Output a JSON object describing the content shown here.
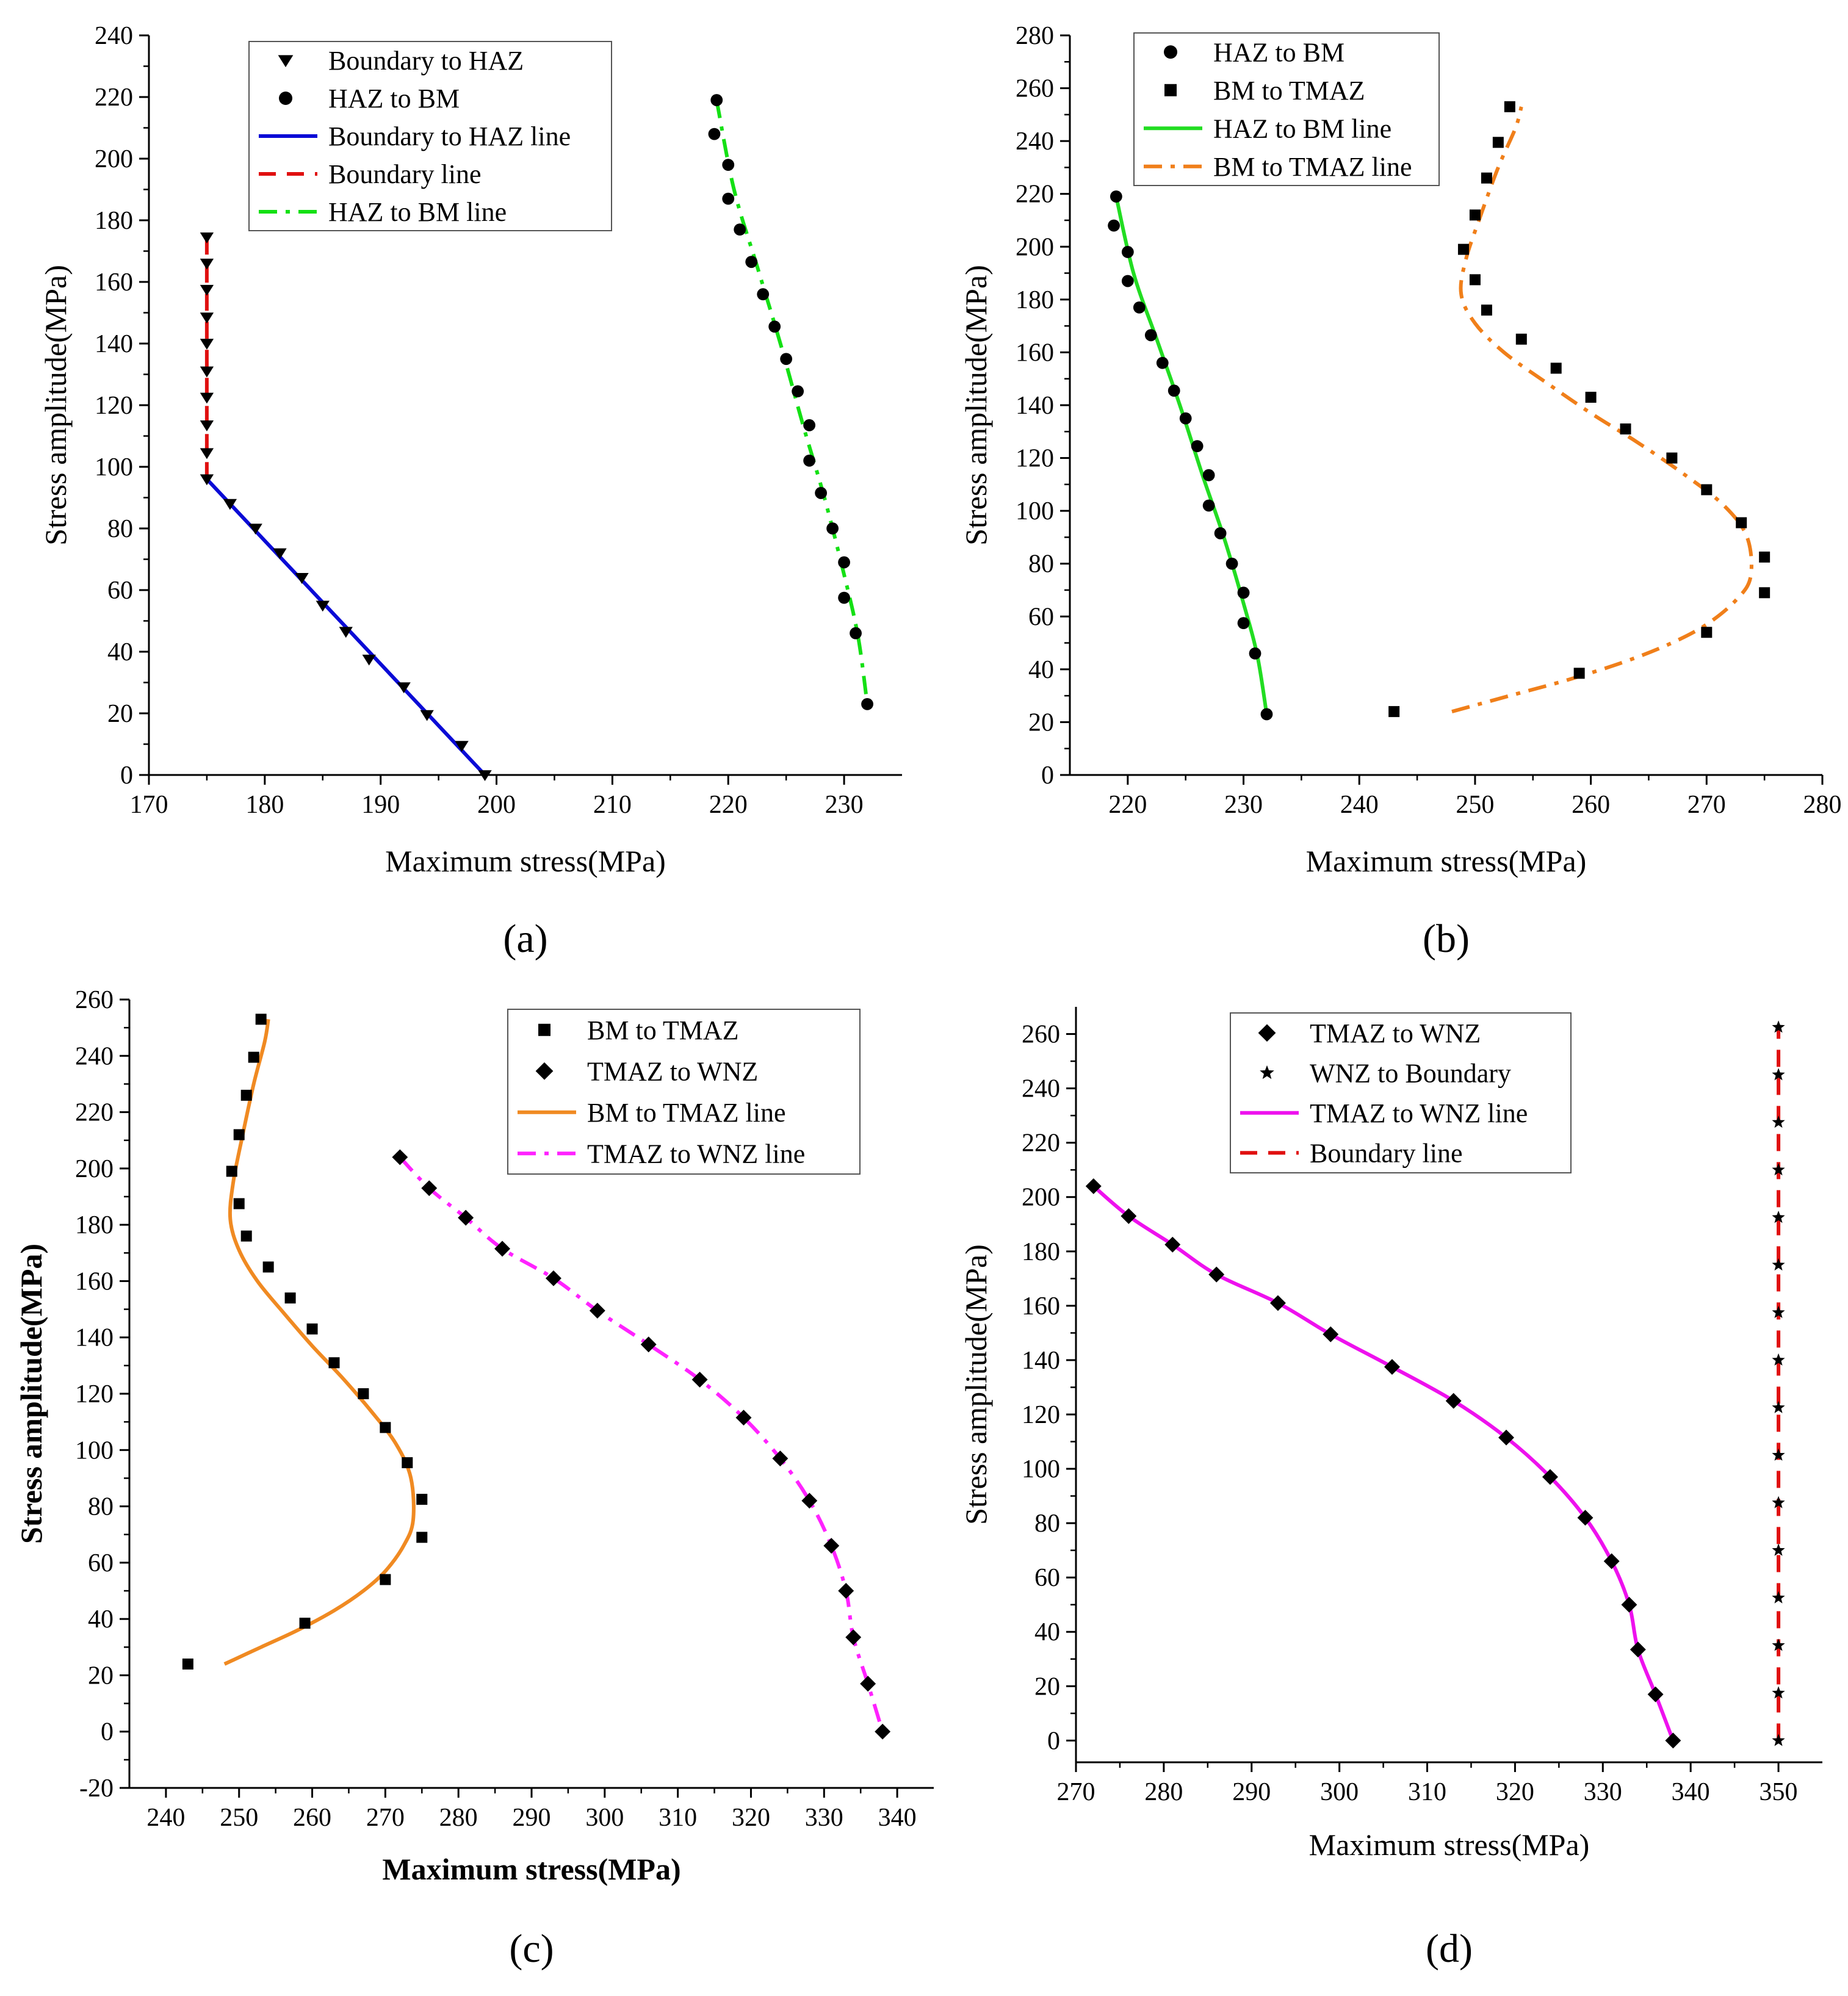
{
  "chart_data": [
    {
      "panel_label": "(a)",
      "type": "scatter",
      "xlabel": "Maximum stress(MPa)",
      "ylabel": "Stress amplitude(MPa)",
      "xlim": [
        170,
        235
      ],
      "ylim": [
        0,
        240
      ],
      "xticks": [
        170,
        180,
        190,
        200,
        210,
        220,
        230
      ],
      "yticks": [
        0,
        20,
        40,
        60,
        80,
        100,
        120,
        140,
        160,
        180,
        200,
        220,
        240
      ],
      "legend_position": "top-right",
      "series": [
        {
          "name": "Boundary to HAZ",
          "kind": "marker",
          "marker": "triangle-down",
          "color": "#000000",
          "x": [
            175,
            177,
            179.2,
            181.3,
            183.2,
            185,
            187,
            189,
            192,
            194,
            197,
            199
          ],
          "y": [
            96,
            88,
            80,
            72,
            64,
            55,
            46.5,
            37.5,
            28.5,
            19.5,
            9.5,
            0
          ]
        },
        {
          "name": "Boundary to HAZ",
          "kind": "marker",
          "marker": "triangle-down",
          "color": "#000000",
          "x": [
            175,
            175,
            175,
            175,
            175,
            175,
            175,
            175,
            175
          ],
          "y": [
            104.5,
            113.5,
            122.5,
            131,
            140,
            148.5,
            157.5,
            166,
            174.5
          ]
        },
        {
          "name": "HAZ to BM",
          "kind": "marker",
          "marker": "circle",
          "color": "#000000",
          "x": [
            219,
            218.8,
            220,
            220,
            221,
            222,
            223,
            224,
            225,
            226,
            227,
            227,
            228,
            229,
            230,
            230,
            231,
            232
          ],
          "y": [
            219,
            208,
            198,
            187,
            177,
            166.5,
            156,
            145.5,
            135,
            124.5,
            113.5,
            102,
            91.5,
            80,
            69,
            57.5,
            46,
            23
          ]
        },
        {
          "name": "Boundary to HAZ line",
          "kind": "line",
          "style": "solid",
          "color": "#0a0ad6",
          "x": [
            175,
            199
          ],
          "y": [
            96,
            0
          ]
        },
        {
          "name": "Boundary line",
          "kind": "line",
          "style": "dash",
          "color": "#e01010",
          "x": [
            175,
            175
          ],
          "y": [
            96,
            175
          ]
        },
        {
          "name": "HAZ to BM line",
          "kind": "line",
          "style": "dashdot",
          "color": "#14e014",
          "x": [
            219,
            220.5,
            222.5,
            224.5,
            226.5,
            228.3,
            230,
            231.2,
            232
          ],
          "y": [
            219,
            190,
            165,
            140,
            113,
            90,
            65,
            45,
            23
          ]
        }
      ]
    },
    {
      "panel_label": "(b)",
      "type": "scatter",
      "xlabel": "Maximum stress(MPa)",
      "ylabel": "Stress amplitude(MPa)",
      "xlim": [
        215,
        280
      ],
      "ylim": [
        0,
        280
      ],
      "xticks": [
        220,
        230,
        240,
        250,
        260,
        270,
        280
      ],
      "yticks": [
        0,
        20,
        40,
        60,
        80,
        100,
        120,
        140,
        160,
        180,
        200,
        220,
        240,
        260,
        280
      ],
      "legend_position": "top-left",
      "series": [
        {
          "name": "HAZ to BM",
          "kind": "marker",
          "marker": "circle",
          "color": "#000000",
          "x": [
            219,
            218.8,
            220,
            220,
            221,
            222,
            223,
            224,
            225,
            226,
            227,
            227,
            228,
            229,
            230,
            230,
            231,
            232
          ],
          "y": [
            219,
            208,
            198,
            187,
            177,
            166.5,
            156,
            145.5,
            135,
            124.5,
            113.5,
            102,
            91.5,
            80,
            69,
            57.5,
            46,
            23
          ]
        },
        {
          "name": "BM to TMAZ",
          "kind": "marker",
          "marker": "square",
          "color": "#000000",
          "x": [
            243,
            259,
            270,
            275,
            275,
            273,
            270,
            267,
            263,
            260,
            257,
            254,
            251,
            250,
            249,
            250,
            251,
            252,
            253
          ],
          "y": [
            24,
            38.5,
            54,
            69,
            82.5,
            95.5,
            108,
            120,
            131,
            143,
            154,
            165,
            176,
            187.5,
            199,
            212,
            226,
            239.5,
            253
          ]
        },
        {
          "name": "HAZ to BM line",
          "kind": "line",
          "style": "solid",
          "color": "#22dd22",
          "x": [
            219,
            220.5,
            222.5,
            224.5,
            226.5,
            228.3,
            230,
            231.2,
            232
          ],
          "y": [
            219,
            190,
            165,
            140,
            113,
            90,
            65,
            45,
            23
          ]
        },
        {
          "name": "BM to TMAZ line",
          "kind": "line",
          "style": "dashdot",
          "color": "#f07f1a",
          "x": [
            248,
            253,
            258,
            263,
            267,
            270,
            272.5,
            273.8,
            273.5,
            271.5,
            268,
            264,
            260,
            256,
            252.5,
            250,
            248.8,
            249.2,
            250.5,
            252,
            253.5,
            254
          ],
          "y": [
            24,
            30,
            36,
            43,
            50,
            57,
            66,
            75,
            90,
            102,
            114,
            126,
            137,
            149,
            160,
            171,
            182,
            195,
            212,
            230,
            245,
            253
          ]
        }
      ]
    },
    {
      "panel_label": "(c)",
      "type": "scatter",
      "xlabel": "Maximum stress(MPa)",
      "ylabel": "Stress amplitude(MPa)",
      "xlim": [
        235,
        345
      ],
      "ylim": [
        -20,
        260
      ],
      "xticks": [
        240,
        250,
        260,
        270,
        280,
        290,
        300,
        310,
        320,
        330,
        340
      ],
      "yticks": [
        -20,
        0,
        20,
        40,
        60,
        80,
        100,
        120,
        140,
        160,
        180,
        200,
        220,
        240,
        260
      ],
      "legend_position": "top-right",
      "series": [
        {
          "name": "BM to TMAZ",
          "kind": "marker",
          "marker": "square",
          "color": "#000000",
          "x": [
            243,
            259,
            270,
            275,
            275,
            273,
            270,
            267,
            263,
            260,
            257,
            254,
            251,
            250,
            249,
            250,
            251,
            252,
            253
          ],
          "y": [
            24,
            38.5,
            54,
            69,
            82.5,
            95.5,
            108,
            120,
            131,
            143,
            154,
            165,
            176,
            187.5,
            199,
            212,
            226,
            239.5,
            253
          ]
        },
        {
          "name": "TMAZ to WNZ",
          "kind": "marker",
          "marker": "diamond",
          "color": "#000000",
          "x": [
            272,
            276,
            281,
            286,
            293,
            299,
            306,
            313,
            319,
            324,
            328,
            331,
            333,
            334,
            336,
            338
          ],
          "y": [
            204,
            193,
            182.5,
            171.5,
            161,
            149.5,
            137.5,
            125,
            111.5,
            97,
            82,
            66,
            50,
            33.5,
            17,
            0
          ]
        },
        {
          "name": "BM to TMAZ line",
          "kind": "line",
          "style": "solid",
          "color": "#f08a22",
          "x": [
            248,
            253,
            258,
            263,
            267,
            270,
            272.5,
            273.8,
            273.5,
            271.5,
            268,
            264,
            260,
            256,
            252.5,
            250,
            248.8,
            249.2,
            250.5,
            252,
            253.5,
            254
          ],
          "y": [
            24,
            30,
            36,
            43,
            50,
            57,
            66,
            75,
            90,
            102,
            114,
            126,
            137,
            149,
            160,
            171,
            182,
            195,
            212,
            230,
            245,
            253
          ]
        },
        {
          "name": "TMAZ to WNZ line",
          "kind": "line",
          "style": "dashdot",
          "color": "#ff22ff",
          "x": [
            272,
            276,
            281,
            286,
            293,
            299,
            306,
            313,
            319,
            324,
            328,
            331,
            333,
            334,
            336,
            338
          ],
          "y": [
            204,
            193,
            182.5,
            171.5,
            161,
            149.5,
            137.5,
            125,
            111.5,
            97,
            82,
            66,
            50,
            33.5,
            17,
            0
          ]
        }
      ]
    },
    {
      "panel_label": "(d)",
      "type": "scatter",
      "xlabel": "Maximum stress(MPa)",
      "ylabel": "Stress amplitude(MPa)",
      "xlim": [
        270,
        355
      ],
      "ylim": [
        -8,
        270
      ],
      "xticks": [
        270,
        280,
        290,
        300,
        310,
        320,
        330,
        340,
        350
      ],
      "yticks": [
        0,
        20,
        40,
        60,
        80,
        100,
        120,
        140,
        160,
        180,
        200,
        220,
        240,
        260
      ],
      "legend_position": "top-right",
      "series": [
        {
          "name": "TMAZ to WNZ",
          "kind": "marker",
          "marker": "diamond",
          "color": "#000000",
          "x": [
            272,
            276,
            281,
            286,
            293,
            299,
            306,
            313,
            319,
            324,
            328,
            331,
            333,
            334,
            336,
            338
          ],
          "y": [
            204,
            193,
            182.5,
            171.5,
            161,
            149.5,
            137.5,
            125,
            111.5,
            97,
            82,
            66,
            50,
            33.5,
            17,
            0
          ]
        },
        {
          "name": "WNZ to Boundary",
          "kind": "marker",
          "marker": "star",
          "color": "#000000",
          "x": [
            350,
            350,
            350,
            350,
            350,
            350,
            350,
            350,
            350,
            350,
            350,
            350,
            350,
            350,
            350,
            350
          ],
          "y": [
            0,
            17.5,
            35,
            52.5,
            70,
            87.5,
            105,
            122.5,
            140,
            157.5,
            175,
            192.5,
            210,
            227.5,
            245,
            262.5
          ]
        },
        {
          "name": "TMAZ to WNZ line",
          "kind": "line",
          "style": "solid",
          "color": "#ee11ee",
          "x": [
            272,
            276,
            281,
            286,
            293,
            299,
            306,
            313,
            319,
            324,
            328,
            331,
            333,
            334,
            336,
            338
          ],
          "y": [
            204,
            193,
            182.5,
            171.5,
            161,
            149.5,
            137.5,
            125,
            111.5,
            97,
            82,
            66,
            50,
            33.5,
            17,
            0
          ]
        },
        {
          "name": "Boundary line",
          "kind": "line",
          "style": "dash",
          "color": "#e01010",
          "x": [
            350,
            350
          ],
          "y": [
            0,
            262.5
          ]
        }
      ]
    }
  ]
}
